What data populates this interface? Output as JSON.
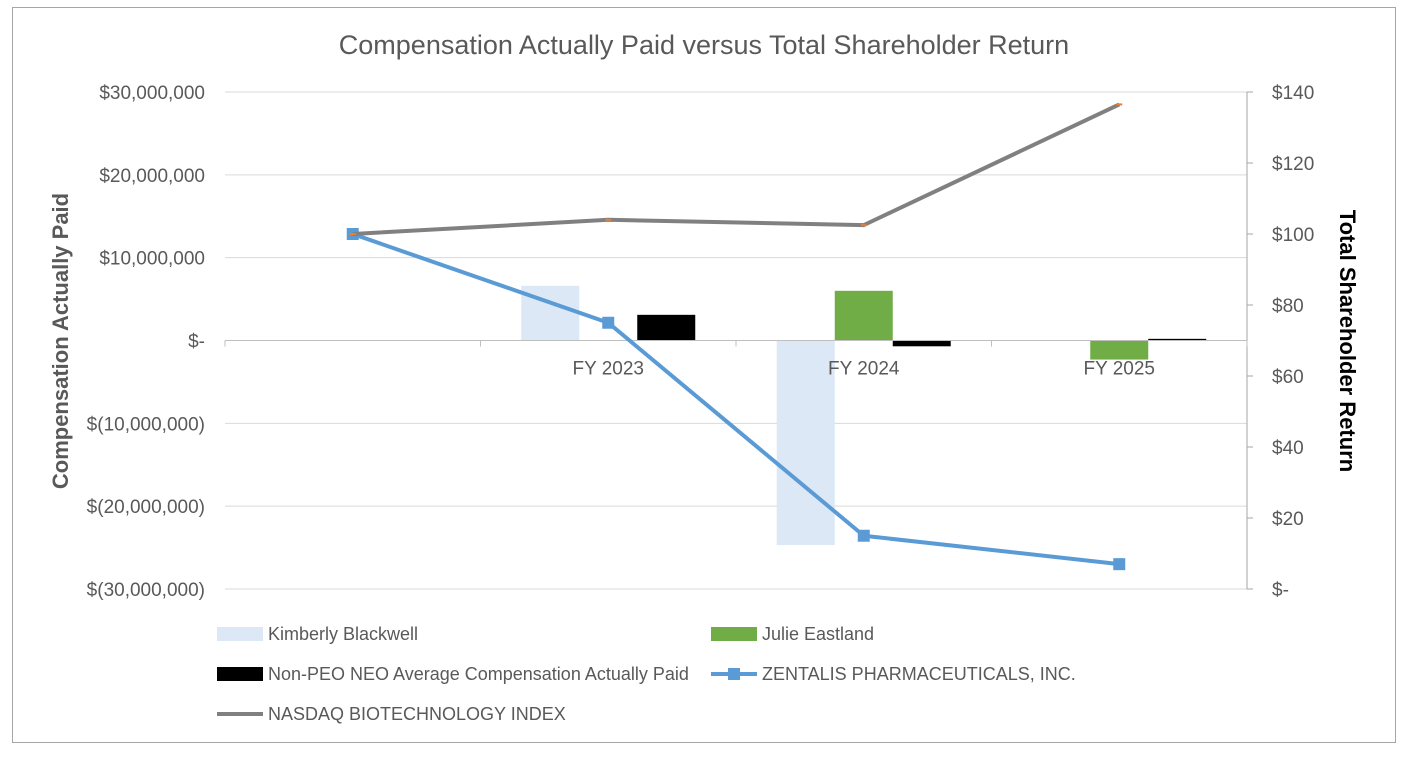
{
  "chart_data": {
    "type": "bar",
    "title": "Compensation Actually Paid versus Total Shareholder Return",
    "categories": [
      "",
      "FY 2023",
      "FY 2024",
      "FY 2025"
    ],
    "ylabel_left": "Compensation Actually Paid",
    "ylabel_right": "Total Shareholder Return",
    "ylim_left": [
      -30000000,
      30000000
    ],
    "ylim_right": [
      0,
      140
    ],
    "left_ticks": [
      {
        "value": 30000000,
        "label": "$30,000,000"
      },
      {
        "value": 20000000,
        "label": "$20,000,000"
      },
      {
        "value": 10000000,
        "label": "$10,000,000"
      },
      {
        "value": 0,
        "label": "$-"
      },
      {
        "value": -10000000,
        "label": "$(10,000,000)"
      },
      {
        "value": -20000000,
        "label": "$(20,000,000)"
      },
      {
        "value": -30000000,
        "label": "$(30,000,000)"
      }
    ],
    "right_ticks": [
      {
        "value": 140,
        "label": "$140"
      },
      {
        "value": 120,
        "label": "$120"
      },
      {
        "value": 100,
        "label": "$100"
      },
      {
        "value": 80,
        "label": "$80"
      },
      {
        "value": 60,
        "label": "$60"
      },
      {
        "value": 40,
        "label": "$40"
      },
      {
        "value": 20,
        "label": "$20"
      },
      {
        "value": 0,
        "label": "$-"
      }
    ],
    "grid": true,
    "legend_position": "bottom",
    "bar_series": [
      {
        "name": "Kimberly Blackwell",
        "color": "#dce8f5",
        "values": [
          null,
          6600000,
          -24700000,
          null
        ]
      },
      {
        "name": "Julie Eastland",
        "color": "#70ad47",
        "values": [
          null,
          null,
          6000000,
          -2300000
        ]
      },
      {
        "name": "Non-PEO NEO Average Compensation Actually Paid",
        "color": "#000000",
        "values": [
          null,
          3100000,
          -700000,
          200000
        ]
      }
    ],
    "line_series": [
      {
        "name": "ZENTALIS PHARMACEUTICALS, INC.",
        "color": "#5b9bd5",
        "marker": "square",
        "values": [
          100,
          75,
          15,
          7
        ]
      },
      {
        "name": "NASDAQ BIOTECHNOLOGY INDEX",
        "color": "#808080",
        "marker": "dash",
        "values": [
          100,
          104,
          102.5,
          136.5
        ]
      }
    ]
  }
}
